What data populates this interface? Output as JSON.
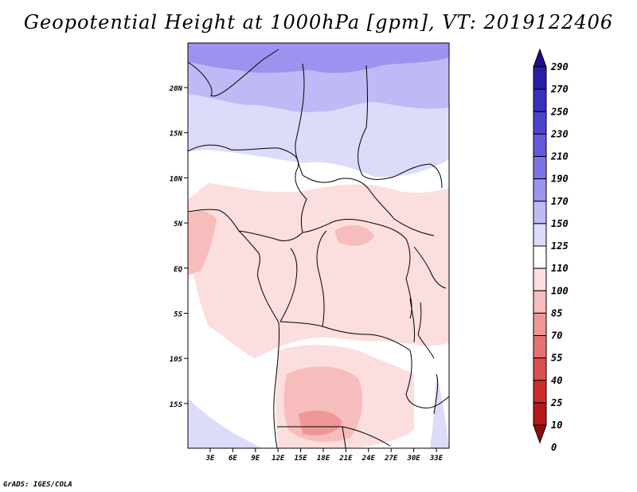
{
  "title": "Geopotential Height at 1000hPa [gpm], VT: 2019122406",
  "credit": "GrADS: IGES/COLA",
  "map": {
    "lat_ticks": [
      "20N",
      "15N",
      "10N",
      "5N",
      "EQ",
      "5S",
      "10S",
      "15S"
    ],
    "lon_ticks": [
      "3E",
      "6E",
      "9E",
      "12E",
      "15E",
      "18E",
      "21E",
      "24E",
      "27E",
      "30E",
      "33E"
    ]
  },
  "colorbar": {
    "labels": [
      "290",
      "270",
      "250",
      "230",
      "210",
      "190",
      "170",
      "150",
      "125",
      "110",
      "100",
      "85",
      "70",
      "55",
      "40",
      "25",
      "10",
      "0"
    ],
    "colors": [
      "#1a0f8c",
      "#281fa6",
      "#3a30bd",
      "#4c43cf",
      "#6458dc",
      "#7c73e6",
      "#9b93ee",
      "#bfbaf6",
      "#dcdcfa",
      "#ffffff",
      "#fcdede",
      "#f7bcbc",
      "#ef9797",
      "#e57272",
      "#db4f4f",
      "#cd2c2c",
      "#b51818",
      "#8c0e0e"
    ]
  }
}
